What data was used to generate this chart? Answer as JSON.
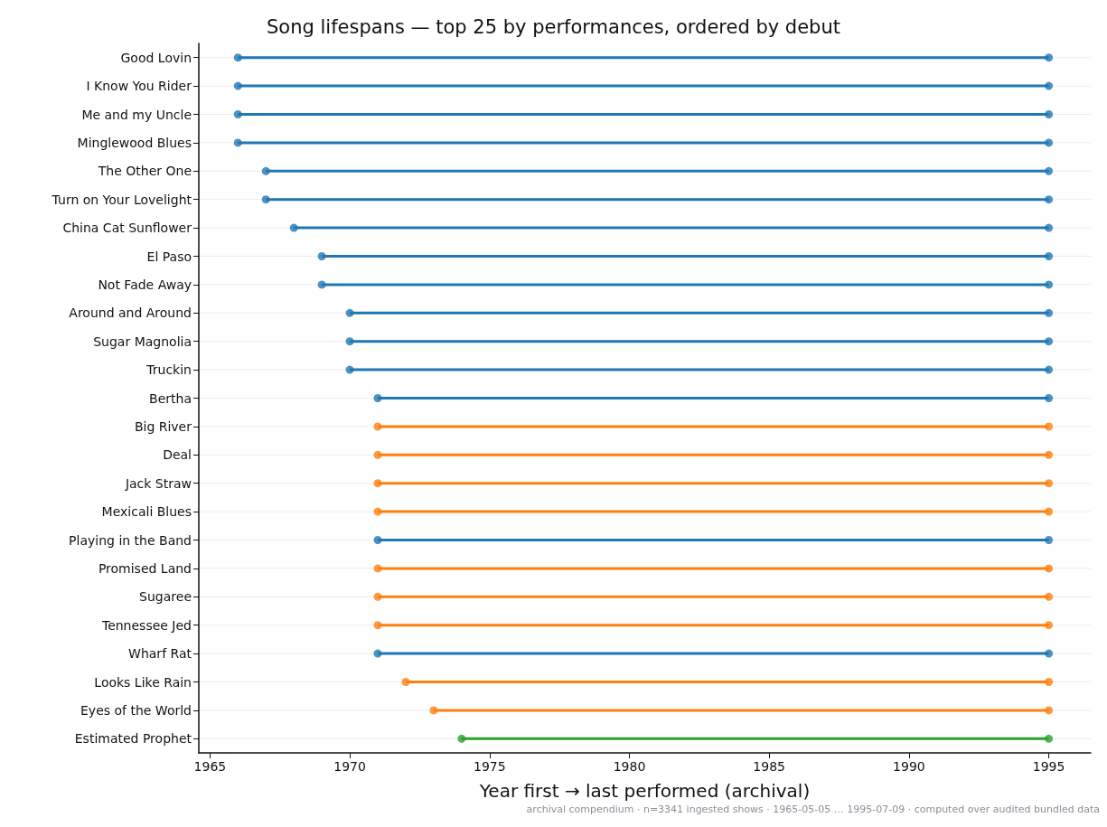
{
  "chart_data": {
    "type": "bar",
    "orientation": "horizontal",
    "title": "Song lifespans — top 25 by performances, ordered by debut",
    "xlabel": "Year first → last performed (archival)",
    "categories": [
      "Good Lovin",
      "I Know You Rider",
      "Me and my Uncle",
      "Minglewood Blues",
      "The Other One",
      "Turn on Your Lovelight",
      "China Cat Sunflower",
      "El Paso",
      "Not Fade Away",
      "Around and Around",
      "Sugar Magnolia",
      "Truckin",
      "Bertha",
      "Big River",
      "Deal",
      "Jack Straw",
      "Mexicali Blues",
      "Playing in the Band",
      "Promised Land",
      "Sugaree",
      "Tennessee Jed",
      "Wharf Rat",
      "Looks Like Rain",
      "Eyes of the World",
      "Estimated Prophet"
    ],
    "series": [
      {
        "base": [
          1966,
          1966,
          1966,
          1966,
          1967,
          1967,
          1968,
          1969,
          1969,
          1970,
          1970,
          1970,
          1971,
          1971,
          1971,
          1971,
          1971,
          1971,
          1971,
          1971,
          1971,
          1971,
          1972,
          1973,
          1974
        ],
        "values": [
          29,
          29,
          29,
          29,
          28,
          28,
          27,
          26,
          26,
          25,
          25,
          25,
          24,
          24,
          24,
          24,
          24,
          24,
          24,
          24,
          24,
          24,
          23,
          22,
          21
        ],
        "colors": [
          "#1f77b4",
          "#1f77b4",
          "#1f77b4",
          "#1f77b4",
          "#1f77b4",
          "#1f77b4",
          "#1f77b4",
          "#1f77b4",
          "#1f77b4",
          "#1f77b4",
          "#1f77b4",
          "#1f77b4",
          "#1f77b4",
          "#ff7f0e",
          "#ff7f0e",
          "#ff7f0e",
          "#ff7f0e",
          "#1f77b4",
          "#ff7f0e",
          "#ff7f0e",
          "#ff7f0e",
          "#1f77b4",
          "#ff7f0e",
          "#ff7f0e",
          "#2ca02c"
        ]
      },
      {
        "type": "scatter",
        "values": [
          1966,
          1966,
          1966,
          1966,
          1967,
          1967,
          1968,
          1969,
          1969,
          1970,
          1970,
          1970,
          1971,
          1971,
          1971,
          1971,
          1971,
          1971,
          1971,
          1971,
          1971,
          1971,
          1972,
          1973,
          1974
        ],
        "colors": [
          "#1f77b4",
          "#1f77b4",
          "#1f77b4",
          "#1f77b4",
          "#1f77b4",
          "#1f77b4",
          "#1f77b4",
          "#1f77b4",
          "#1f77b4",
          "#1f77b4",
          "#1f77b4",
          "#1f77b4",
          "#1f77b4",
          "#ff7f0e",
          "#ff7f0e",
          "#ff7f0e",
          "#ff7f0e",
          "#1f77b4",
          "#ff7f0e",
          "#ff7f0e",
          "#ff7f0e",
          "#1f77b4",
          "#ff7f0e",
          "#ff7f0e",
          "#2ca02c"
        ]
      },
      {
        "type": "scatter",
        "values": [
          1995,
          1995,
          1995,
          1995,
          1995,
          1995,
          1995,
          1995,
          1995,
          1995,
          1995,
          1995,
          1995,
          1995,
          1995,
          1995,
          1995,
          1995,
          1995,
          1995,
          1995,
          1995,
          1995,
          1995,
          1995
        ],
        "colors": [
          "#1f77b4",
          "#1f77b4",
          "#1f77b4",
          "#1f77b4",
          "#1f77b4",
          "#1f77b4",
          "#1f77b4",
          "#1f77b4",
          "#1f77b4",
          "#1f77b4",
          "#1f77b4",
          "#1f77b4",
          "#1f77b4",
          "#ff7f0e",
          "#ff7f0e",
          "#ff7f0e",
          "#ff7f0e",
          "#1f77b4",
          "#ff7f0e",
          "#ff7f0e",
          "#ff7f0e",
          "#1f77b4",
          "#ff7f0e",
          "#ff7f0e",
          "#2ca02c"
        ]
      }
    ],
    "xlim": [
      1964.6,
      1996.5
    ],
    "xticks": [
      1965,
      1970,
      1975,
      1980,
      1985,
      1990,
      1995
    ],
    "grid": "y",
    "marker": "circle",
    "annotations": [
      "archival compendium · n=3341 ingested shows · 1965-05-05 … 1995-07-09 · computed over audited bundled data"
    ]
  }
}
